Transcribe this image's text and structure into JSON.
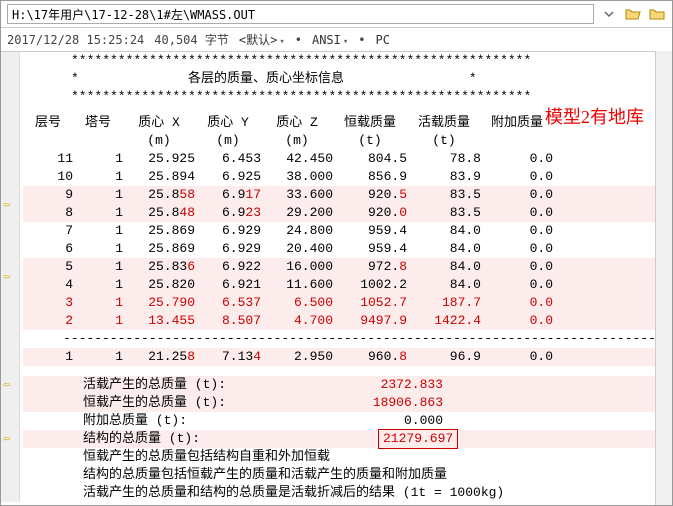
{
  "path": "H:\\17年用户\\17-12-28\\1#左\\WMASS.OUT",
  "info": {
    "datetime": "2017/12/28 15:25:24",
    "size": "40,504 字节",
    "enc_label": "<默认>",
    "enc2": "ANSI",
    "enc3": "PC"
  },
  "annotation": "模型2有地库",
  "section_title": "各层的质量、质心坐标信息",
  "headers": {
    "layer": "层号",
    "tower": "塔号",
    "massx": "质心 X",
    "massy": "质心 Y",
    "massz": "质心 Z",
    "dead": "恒载质量",
    "live": "活载质量",
    "add": "附加质量"
  },
  "units": {
    "massx": "(m)",
    "massy": "(m)",
    "massz": "(m)",
    "dead": "(t)",
    "live": "(t)",
    "add": ""
  },
  "rows": [
    {
      "hl": false,
      "arrow": false,
      "layer": "11",
      "tower": "1",
      "x": "25.925",
      "y": "6.453",
      "z": "42.450",
      "dead": "804.5",
      "live": "78.8",
      "add": "0.0",
      "rx": "",
      "ry": "",
      "rz": "",
      "rd": "",
      "rl": "",
      "ra": ""
    },
    {
      "hl": false,
      "arrow": false,
      "layer": "10",
      "tower": "1",
      "x": "25.894",
      "y": "6.925",
      "z": "38.000",
      "dead": "856.9",
      "live": "83.9",
      "add": "0.0",
      "rx": "",
      "ry": "",
      "rz": "",
      "rd": "",
      "rl": "",
      "ra": ""
    },
    {
      "hl": true,
      "arrow": true,
      "layer": "9",
      "tower": "1",
      "x": "25.8",
      "y": "6.9",
      "z": "33.600",
      "dead": "920.",
      "live": "83.5",
      "add": "0.0",
      "rx": "58",
      "ry": "17",
      "rz": "",
      "rd": "5",
      "rl": "",
      "ra": ""
    },
    {
      "hl": true,
      "arrow": false,
      "layer": "8",
      "tower": "1",
      "x": "25.8",
      "y": "6.9",
      "z": "29.200",
      "dead": "920.",
      "live": "83.5",
      "add": "0.0",
      "rx": "48",
      "ry": "23",
      "rz": "",
      "rd": "0",
      "rl": "",
      "ra": ""
    },
    {
      "hl": false,
      "arrow": false,
      "layer": "7",
      "tower": "1",
      "x": "25.869",
      "y": "6.929",
      "z": "24.800",
      "dead": "959.4",
      "live": "84.0",
      "add": "0.0",
      "rx": "",
      "ry": "",
      "rz": "",
      "rd": "",
      "rl": "",
      "ra": ""
    },
    {
      "hl": false,
      "arrow": false,
      "layer": "6",
      "tower": "1",
      "x": "25.869",
      "y": "6.929",
      "z": "20.400",
      "dead": "959.4",
      "live": "84.0",
      "add": "0.0",
      "rx": "",
      "ry": "",
      "rz": "",
      "rd": "",
      "rl": "",
      "ra": ""
    },
    {
      "hl": true,
      "arrow": true,
      "layer": "5",
      "tower": "1",
      "x": "25.83",
      "y": "6.922",
      "z": "16.000",
      "dead": "972.",
      "live": "84.0",
      "add": "0.0",
      "rx": "6",
      "ry": "",
      "rz": "",
      "rd": "8",
      "rl": "",
      "ra": ""
    },
    {
      "hl": true,
      "arrow": false,
      "layer": "4",
      "tower": "1",
      "x": "25.820",
      "y": "6.921",
      "z": "11.600",
      "dead": "1002.2",
      "live": "84.0",
      "add": "0.0",
      "rx": "",
      "ry": "",
      "rz": "",
      "rd": "",
      "rl": "",
      "ra": ""
    },
    {
      "hl": true,
      "arrow": false,
      "layer": "3",
      "tower": "1",
      "x": "25.79",
      "y": "6.53",
      "z": "6.5",
      "dead": "1052.",
      "live": "187.",
      "add": "0.",
      "rx": "0",
      "ry": "7",
      "rz": "00",
      "rd": "7",
      "rl": "7",
      "ra": "0",
      "allred": true
    },
    {
      "hl": true,
      "arrow": false,
      "layer": "2",
      "tower": "1",
      "x": "13.45",
      "y": "8.50",
      "z": "4.7",
      "dead": "9497.",
      "live": "1422.",
      "add": "0.",
      "rx": "5",
      "ry": "7",
      "rz": "00",
      "rd": "9",
      "rl": "4",
      "ra": "0",
      "allred": true
    }
  ],
  "row_last": {
    "hl": true,
    "arrow": false,
    "layer": "1",
    "tower": "1",
    "x": "21.25",
    "y": "7.13",
    "z": "2.950",
    "dead": "960.",
    "live": "96.9",
    "add": "0.0",
    "rx": "8",
    "ry": "4",
    "rz": "",
    "rd": "8",
    "rl": "",
    "ra": ""
  },
  "summary": {
    "live_label": "活载产生的总质量 (t):",
    "live_val": "2372.833",
    "dead_label": "恒载产生的总质量 (t):",
    "dead_val": "18906.863",
    "add_label": "附加总质量 (t):",
    "add_val": "0.000",
    "total_label": "结构的总质量 (t):",
    "total_val": "21279.697"
  },
  "notes": [
    "恒载产生的总质量包括结构自重和外加恒载",
    "结构的总质量包括恒载产生的质量和活载产生的质量和附加质量",
    "活载产生的总质量和结构的总质量是活载折减后的结果 (1t = 1000kg)"
  ]
}
